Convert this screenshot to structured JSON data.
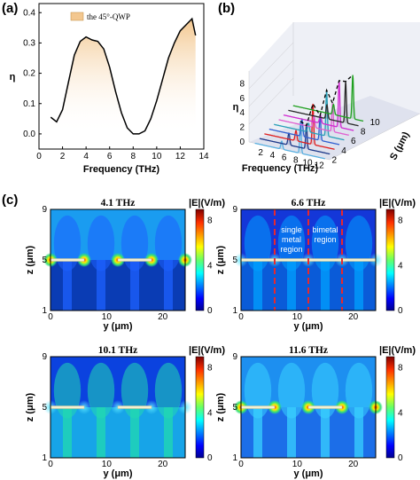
{
  "panels": {
    "a": {
      "label": "(a)",
      "ylabel": "η",
      "xlabel": "Frequency (THz)",
      "legend": "the 45°-QWP",
      "xticks": [
        "0",
        "2",
        "4",
        "6",
        "8",
        "10",
        "12",
        "14"
      ],
      "yticks": [
        "0.0",
        "0.1",
        "0.2",
        "0.3",
        "0.4"
      ]
    },
    "b": {
      "label": "(b)",
      "ylabel": "η",
      "xlabel": "Frequency (THz)",
      "slabel": "S (μm)",
      "yticks": [
        "0",
        "2",
        "4",
        "6",
        "8"
      ],
      "xticks": [
        "2",
        "4",
        "6",
        "8",
        "10",
        "12"
      ],
      "sticks": [
        "2",
        "4",
        "6",
        "8",
        "10"
      ]
    },
    "c": {
      "label": "(c)",
      "cb_title": "|E|(V/m)",
      "cb_ticks": [
        "0",
        "4",
        "8"
      ],
      "map_z_ticks": [
        "1",
        "5",
        "9"
      ],
      "map_y_ticks": [
        "0",
        "10",
        "20"
      ],
      "map_zlabel": "z (μm)",
      "map_ylabel": "y (μm)",
      "maps": [
        {
          "title": "4.1 THz"
        },
        {
          "title": "6.6 THz",
          "annotations": [
            "single",
            "metal",
            "region",
            "bimetal",
            "region"
          ]
        },
        {
          "title": "10.1 THz"
        },
        {
          "title": "11.6 THz"
        }
      ]
    }
  },
  "chart_data": [
    {
      "type": "area",
      "panel": "a",
      "legend": "the 45°-QWP",
      "xlabel": "Frequency (THz)",
      "ylabel": "η",
      "xlim": [
        0,
        14
      ],
      "ylim": [
        -0.05,
        0.43
      ],
      "x": [
        1.0,
        1.5,
        2.0,
        2.5,
        3.0,
        3.5,
        4.0,
        4.5,
        5.0,
        5.5,
        6.0,
        6.5,
        7.0,
        7.5,
        8.0,
        8.5,
        9.0,
        9.5,
        10.0,
        10.5,
        11.0,
        11.5,
        12.0,
        12.5,
        13.0,
        13.3
      ],
      "y": [
        0.055,
        0.04,
        0.08,
        0.17,
        0.26,
        0.305,
        0.32,
        0.31,
        0.305,
        0.28,
        0.22,
        0.14,
        0.07,
        0.02,
        0.0,
        0.0,
        0.01,
        0.05,
        0.11,
        0.18,
        0.25,
        0.3,
        0.34,
        0.36,
        0.38,
        0.325
      ],
      "fill_colors": [
        "#f3c78f",
        "#ffffff"
      ]
    },
    {
      "type": "line",
      "panel": "b",
      "style": "3d-waterfall",
      "xlabel": "Frequency (THz)",
      "ylabel": "η",
      "slabel": "S (μm)",
      "series": [
        {
          "s": 2,
          "color": "#5ab0e0",
          "peaks": [
            [
              5.6,
              1.1
            ],
            [
              8.8,
              4.4
            ]
          ]
        },
        {
          "s": 3,
          "color": "#1f3a8a",
          "peaks": [
            [
              6.0,
              1.6
            ],
            [
              9.0,
              3.2
            ]
          ]
        },
        {
          "s": 4,
          "color": "#e02020",
          "peaks": [
            [
              6.4,
              1.4
            ],
            [
              9.3,
              5.6
            ]
          ]
        },
        {
          "s": 5,
          "color": "#2f5fd0",
          "peaks": [
            [
              6.6,
              2.3
            ],
            [
              9.7,
              3.4
            ]
          ]
        },
        {
          "s": 6,
          "color": "#2aa0b8",
          "peaks": [
            [
              6.9,
              1.2
            ],
            [
              10.0,
              6.3
            ]
          ]
        },
        {
          "s": 7,
          "color": "#e060d0",
          "peaks": [
            [
              7.0,
              1.6
            ],
            [
              10.2,
              3.9
            ]
          ]
        },
        {
          "s": 8,
          "color": "#d22bd2",
          "peaks": [
            [
              7.3,
              1.1
            ],
            [
              10.5,
              6.4
            ]
          ]
        },
        {
          "s": 9,
          "color": "#2a2a2a",
          "peaks": [
            [
              7.6,
              1.9
            ],
            [
              10.8,
              5.7
            ]
          ]
        },
        {
          "s": 10,
          "color": "#1fa01f",
          "peaks": [
            [
              7.9,
              1.4
            ],
            [
              11.2,
              6.0
            ]
          ]
        }
      ]
    },
    {
      "type": "heatmap",
      "panel": "c",
      "ylim": [
        0,
        24
      ],
      "zlim": [
        1,
        9
      ],
      "clim": [
        0,
        9
      ],
      "maps": [
        {
          "title": "4.1 THz",
          "metal_z": 5,
          "strips": [
            [
              0,
              6
            ],
            [
              12,
              18
            ]
          ]
        },
        {
          "title": "6.6 THz",
          "metal_z": 5,
          "strips": [
            [
              0,
              6
            ],
            [
              6,
              24
            ]
          ],
          "dashed_y": [
            6,
            12,
            18
          ]
        },
        {
          "title": "10.1 THz",
          "metal_z": 5,
          "strips": [
            [
              0,
              6
            ],
            [
              12,
              18
            ]
          ]
        },
        {
          "title": "11.6 THz",
          "metal_z": 5,
          "strips": [
            [
              0,
              6
            ],
            [
              12,
              18
            ]
          ]
        }
      ]
    }
  ]
}
